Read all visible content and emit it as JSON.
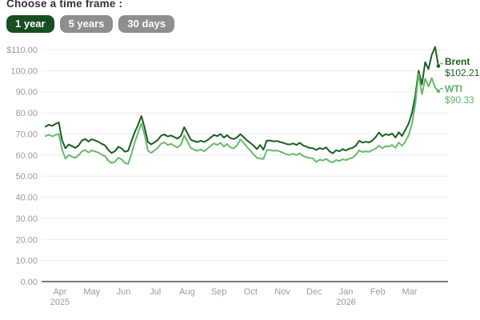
{
  "header": {
    "title": "Choose a time frame :",
    "buttons": [
      {
        "label": "1 year",
        "active": true
      },
      {
        "label": "5 years",
        "active": false
      },
      {
        "label": "30 days",
        "active": false
      }
    ]
  },
  "legend": {
    "brent_label": "Brent",
    "brent_value": "$102.21",
    "wti_label": "WTI",
    "wti_value": "$90.33"
  },
  "colors": {
    "brent_line": "#1b5e20",
    "wti_line": "#66bb6a",
    "active_button_bg": "#174f20",
    "inactive_button_bg": "#8e8e8e",
    "grid_line": "#ececec",
    "axis_line": "#4d4d4d",
    "tick_text": "#9b9b9b",
    "legend_dash": "#9b9b9b"
  },
  "chart_data": {
    "type": "line",
    "title": "",
    "xlabel": "",
    "ylabel": "",
    "ylim": [
      0,
      110
    ],
    "grid": true,
    "legend_position": "right",
    "yticks": [
      {
        "v": 110,
        "label": "$110.00"
      },
      {
        "v": 100,
        "label": "100.00"
      },
      {
        "v": 90,
        "label": "90.00"
      },
      {
        "v": 80,
        "label": "80.00"
      },
      {
        "v": 70,
        "label": "70.00"
      },
      {
        "v": 60,
        "label": "60.00"
      },
      {
        "v": 50,
        "label": "50.00"
      },
      {
        "v": 40,
        "label": "40.00"
      },
      {
        "v": 30,
        "label": "30.00"
      },
      {
        "v": 20,
        "label": "20.00"
      },
      {
        "v": 10,
        "label": "10.00"
      },
      {
        "v": 0,
        "label": "0.00"
      }
    ],
    "x_months": [
      {
        "label": "Apr",
        "year": "2025"
      },
      {
        "label": "May"
      },
      {
        "label": "Jun"
      },
      {
        "label": "Jul"
      },
      {
        "label": "Aug"
      },
      {
        "label": "Sep"
      },
      {
        "label": "Oct"
      },
      {
        "label": "Nov"
      },
      {
        "label": "Dec"
      },
      {
        "label": "Jan",
        "year": "2026"
      },
      {
        "label": "Feb"
      },
      {
        "label": "Mar"
      }
    ],
    "series": [
      {
        "name": "Brent",
        "end_value_label": "$102.21",
        "color": "#1b5e20",
        "values": [
          73.5,
          74.4,
          73.8,
          74.8,
          75.5,
          67.0,
          63.2,
          65.0,
          64.2,
          63.4,
          64.6,
          66.9,
          67.6,
          66.4,
          67.5,
          66.9,
          66.3,
          65.3,
          64.6,
          62.4,
          61.0,
          61.8,
          63.9,
          63.2,
          61.6,
          62.0,
          66.5,
          70.8,
          74.3,
          78.5,
          73.0,
          66.2,
          65.1,
          66.0,
          67.2,
          69.2,
          69.8,
          68.8,
          69.3,
          68.5,
          67.8,
          69.2,
          73.2,
          70.3,
          67.3,
          66.6,
          66.2,
          66.8,
          66.2,
          67.0,
          68.3,
          69.5,
          69.0,
          70.0,
          68.3,
          69.4,
          68.0,
          67.6,
          68.4,
          69.9,
          68.5,
          67.0,
          65.8,
          64.5,
          62.8,
          64.8,
          62.5,
          66.8,
          66.9,
          66.5,
          66.7,
          66.2,
          65.8,
          65.2,
          65.0,
          65.5,
          64.8,
          65.8,
          64.6,
          64.0,
          63.4,
          63.2,
          62.4,
          63.3,
          62.8,
          63.6,
          61.8,
          60.8,
          62.3,
          61.8,
          62.8,
          62.2,
          63.0,
          63.4,
          64.5,
          66.8,
          65.9,
          66.3,
          66.0,
          66.9,
          68.5,
          70.7,
          68.9,
          69.9,
          69.5,
          70.2,
          68.3,
          70.8,
          69.0,
          72.0,
          75.0,
          80.0,
          88.0,
          100.0,
          93.5,
          104.0,
          100.8,
          107.5,
          111.3,
          102.21
        ]
      },
      {
        "name": "WTI",
        "end_value_label": "$90.33",
        "color": "#66bb6a",
        "values": [
          69.0,
          69.6,
          68.9,
          69.5,
          70.0,
          62.5,
          58.3,
          60.0,
          59.2,
          58.6,
          60.0,
          61.7,
          62.4,
          61.2,
          62.2,
          61.7,
          61.2,
          60.2,
          59.5,
          57.3,
          56.2,
          56.8,
          58.7,
          58.0,
          56.3,
          55.8,
          60.5,
          66.0,
          70.5,
          75.0,
          69.5,
          62.0,
          61.0,
          62.2,
          63.5,
          65.4,
          66.0,
          64.8,
          65.3,
          64.3,
          63.6,
          65.0,
          69.3,
          66.3,
          63.3,
          62.5,
          62.0,
          62.7,
          61.8,
          63.0,
          64.3,
          65.5,
          64.8,
          65.8,
          64.0,
          65.2,
          63.6,
          63.2,
          64.5,
          67.5,
          65.8,
          63.8,
          62.2,
          60.3,
          58.8,
          58.3,
          58.2,
          62.3,
          62.4,
          62.0,
          62.2,
          61.7,
          61.0,
          60.4,
          60.1,
          60.6,
          60.0,
          60.8,
          59.6,
          59.0,
          58.6,
          58.4,
          56.7,
          57.8,
          57.4,
          58.2,
          57.0,
          56.5,
          57.6,
          57.2,
          58.0,
          57.6,
          58.3,
          58.8,
          60.0,
          62.2,
          61.4,
          61.8,
          61.5,
          62.4,
          63.0,
          64.5,
          63.2,
          64.2,
          64.0,
          64.8,
          63.4,
          66.0,
          64.3,
          66.5,
          69.5,
          75.0,
          84.0,
          98.5,
          88.8,
          96.2,
          92.5,
          96.5,
          92.0,
          90.33
        ]
      }
    ]
  }
}
